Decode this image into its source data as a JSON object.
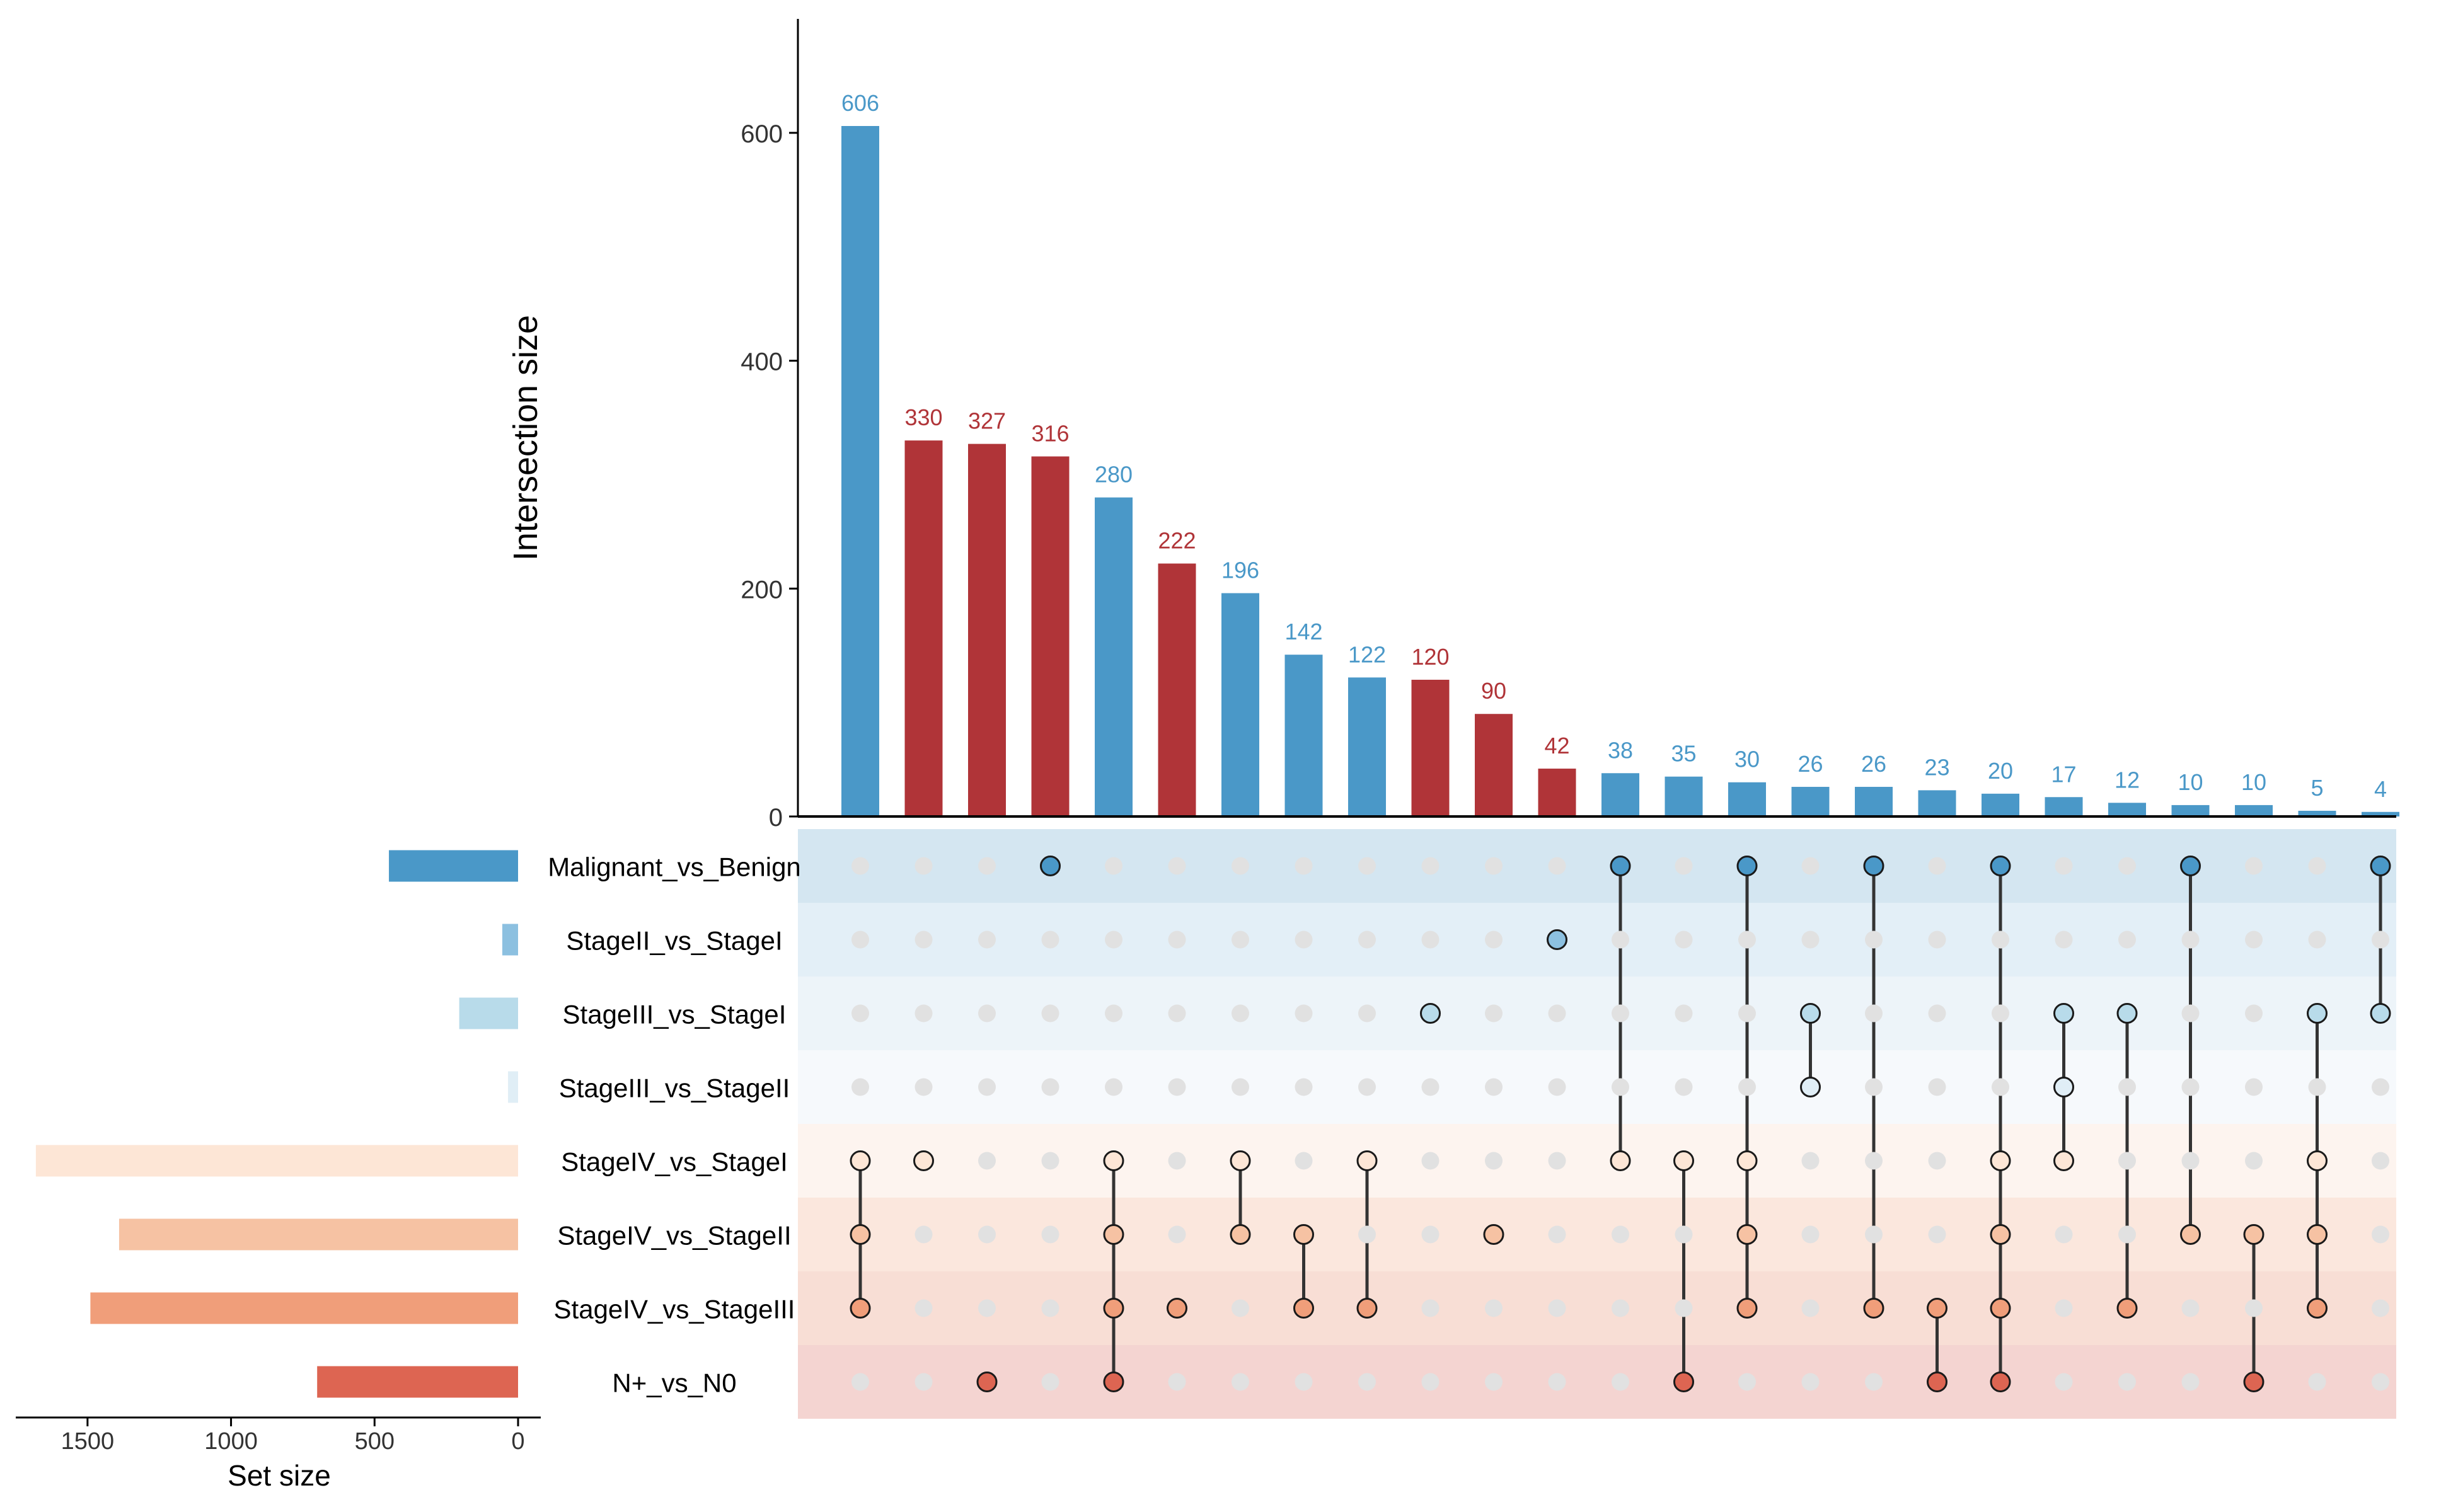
{
  "chart_data": {
    "type": "upset",
    "ylabel": "Intersection size",
    "set_size_label": "Set size",
    "y_ticks": [
      0,
      200,
      400,
      600
    ],
    "ylim": [
      0,
      700
    ],
    "set_size_ticks": [
      1500,
      1000,
      500,
      0
    ],
    "set_size_lim": [
      0,
      1750
    ],
    "sets": [
      {
        "name": "Malignant_vs_Benign",
        "size": 450,
        "color": "#4a98c8",
        "band": "#d4e6f1"
      },
      {
        "name": "StageII_vs_StageI",
        "size": 55,
        "color": "#8cc0e0",
        "band": "#e3eff7"
      },
      {
        "name": "StageIII_vs_StageI",
        "size": 205,
        "color": "#b8dbea",
        "band": "#edf4f9"
      },
      {
        "name": "StageIII_vs_StageII",
        "size": 35,
        "color": "#e0eef6",
        "band": "#f6f9fc"
      },
      {
        "name": "StageIV_vs_StageI",
        "size": 1680,
        "color": "#fde6d6",
        "band": "#fdf4ef"
      },
      {
        "name": "StageIV_vs_StageII",
        "size": 1390,
        "color": "#f6c2a3",
        "band": "#fbe7dd"
      },
      {
        "name": "StageIV_vs_StageIII",
        "size": 1490,
        "color": "#f09e7a",
        "band": "#f8ded5"
      },
      {
        "name": "N+_vs_N0",
        "size": 700,
        "color": "#dd6552",
        "band": "#f4d4d1"
      }
    ],
    "intersections": [
      {
        "value": 606,
        "color": "#4a98c8",
        "members": [
          4,
          5,
          6
        ]
      },
      {
        "value": 330,
        "color": "#b03438",
        "members": [
          4
        ]
      },
      {
        "value": 327,
        "color": "#b03438",
        "members": [
          7
        ]
      },
      {
        "value": 316,
        "color": "#b03438",
        "members": [
          0
        ]
      },
      {
        "value": 280,
        "color": "#4a98c8",
        "members": [
          4,
          5,
          6,
          7
        ]
      },
      {
        "value": 222,
        "color": "#b03438",
        "members": [
          6
        ]
      },
      {
        "value": 196,
        "color": "#4a98c8",
        "members": [
          4,
          5
        ]
      },
      {
        "value": 142,
        "color": "#4a98c8",
        "members": [
          5,
          6
        ]
      },
      {
        "value": 122,
        "color": "#4a98c8",
        "members": [
          4,
          6
        ]
      },
      {
        "value": 120,
        "color": "#b03438",
        "members": [
          2
        ]
      },
      {
        "value": 90,
        "color": "#b03438",
        "members": [
          5
        ]
      },
      {
        "value": 42,
        "color": "#b03438",
        "members": [
          1
        ]
      },
      {
        "value": 38,
        "color": "#4a98c8",
        "members": [
          0,
          4
        ]
      },
      {
        "value": 35,
        "color": "#4a98c8",
        "members": [
          4,
          7
        ]
      },
      {
        "value": 30,
        "color": "#4a98c8",
        "members": [
          0,
          4,
          5,
          6
        ]
      },
      {
        "value": 26,
        "color": "#4a98c8",
        "members": [
          2,
          3
        ]
      },
      {
        "value": 26,
        "color": "#4a98c8",
        "members": [
          0,
          6
        ]
      },
      {
        "value": 23,
        "color": "#4a98c8",
        "members": [
          6,
          7
        ]
      },
      {
        "value": 20,
        "color": "#4a98c8",
        "members": [
          0,
          4,
          5,
          6,
          7
        ]
      },
      {
        "value": 17,
        "color": "#4a98c8",
        "members": [
          2,
          3,
          4
        ]
      },
      {
        "value": 12,
        "color": "#4a98c8",
        "members": [
          2,
          6
        ]
      },
      {
        "value": 10,
        "color": "#4a98c8",
        "members": [
          0,
          5
        ]
      },
      {
        "value": 10,
        "color": "#4a98c8",
        "members": [
          5,
          7
        ]
      },
      {
        "value": 5,
        "color": "#4a98c8",
        "members": [
          2,
          4,
          5,
          6
        ]
      },
      {
        "value": 4,
        "color": "#4a98c8",
        "members": [
          0,
          2
        ]
      }
    ]
  }
}
